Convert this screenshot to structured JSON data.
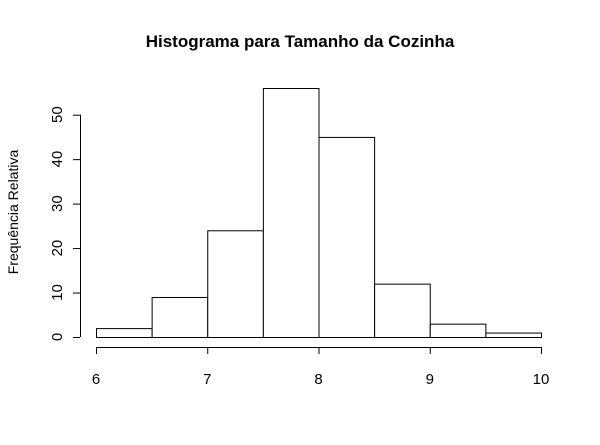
{
  "chart_data": {
    "type": "bar",
    "title": "Histograma para Tamanho da Cozinha",
    "xlabel": "",
    "ylabel": "Frequência Relativa",
    "bins": [
      {
        "x0": 6.0,
        "x1": 6.5,
        "value": 2
      },
      {
        "x0": 6.5,
        "x1": 7.0,
        "value": 9
      },
      {
        "x0": 7.0,
        "x1": 7.5,
        "value": 24
      },
      {
        "x0": 7.5,
        "x1": 8.0,
        "value": 56
      },
      {
        "x0": 8.0,
        "x1": 8.5,
        "value": 45
      },
      {
        "x0": 8.5,
        "x1": 9.0,
        "value": 12
      },
      {
        "x0": 9.0,
        "x1": 9.5,
        "value": 3
      },
      {
        "x0": 9.5,
        "x1": 10.0,
        "value": 1
      }
    ],
    "xticks": [
      6,
      7,
      8,
      9,
      10
    ],
    "yticks": [
      0,
      10,
      20,
      30,
      40,
      50
    ],
    "xlim": [
      6,
      10
    ],
    "ylim": [
      0,
      56
    ],
    "grid": false,
    "colors": {
      "bar_fill": "#ffffff",
      "bar_stroke": "#000000"
    }
  }
}
